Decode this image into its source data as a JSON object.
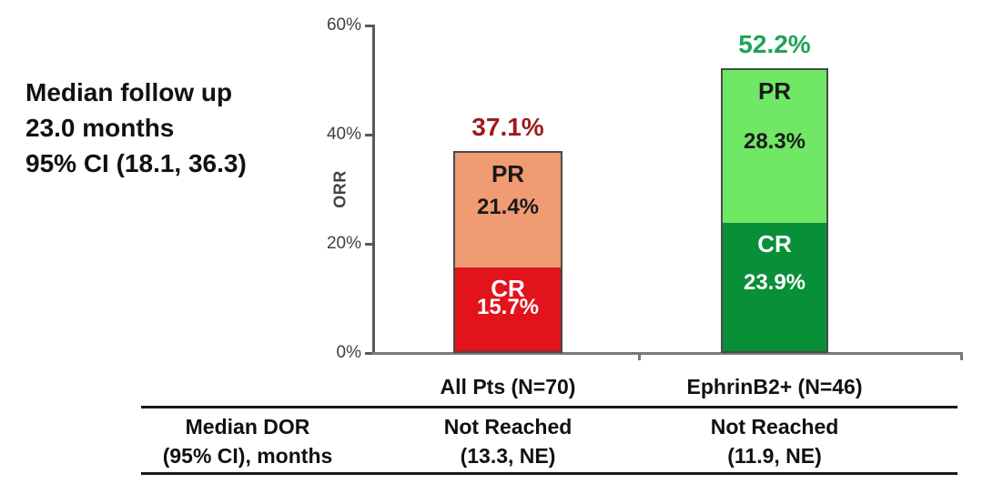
{
  "annotation": {
    "line1": "Median follow up",
    "line2": "23.0 months",
    "line3": "95% CI (18.1, 36.3)"
  },
  "chart_data": {
    "type": "bar",
    "stacked": true,
    "ylabel": "ORR",
    "ylim": [
      0,
      60
    ],
    "y_tick_labels": [
      "0%",
      "20%",
      "40%",
      "60%"
    ],
    "y_tick_values": [
      0,
      20,
      40,
      60
    ],
    "categories": [
      "All Pts (N=70)",
      "EphrinB2+ (N=46)"
    ],
    "series": [
      {
        "name": "CR",
        "values": [
          15.7,
          23.9
        ]
      },
      {
        "name": "PR",
        "values": [
          21.4,
          28.3
        ]
      }
    ],
    "totals": [
      37.1,
      52.2
    ],
    "grid": false,
    "legend": "labels inside segments",
    "groups": [
      {
        "category": "All Pts (N=70)",
        "total_label": "37.1%",
        "total_color": "#9e1a1e",
        "cr": {
          "label": "CR",
          "value": 15.7,
          "value_label": "15.7%",
          "color": "#e2131b",
          "text_color": "#ffffff"
        },
        "pr": {
          "label": "PR",
          "value": 21.4,
          "value_label": "21.4%",
          "color": "#f09c72",
          "text_color": "#1a1a1a"
        }
      },
      {
        "category": "EphrinB2+ (N=46)",
        "total_label": "52.2%",
        "total_color": "#1fa355",
        "cr": {
          "label": "CR",
          "value": 23.9,
          "value_label": "23.9%",
          "color": "#089038",
          "text_color": "#ffffff"
        },
        "pr": {
          "label": "PR",
          "value": 28.3,
          "value_label": "28.3%",
          "color": "#70e765",
          "text_color": "#1a1a1a"
        }
      }
    ]
  },
  "table": {
    "row_header": {
      "line1": "Median DOR",
      "line2": "(95% CI), months"
    },
    "cells": [
      {
        "line1": "Not Reached",
        "line2": "(13.3, NE)"
      },
      {
        "line1": "Not Reached",
        "line2": "(11.9, NE)"
      }
    ]
  }
}
